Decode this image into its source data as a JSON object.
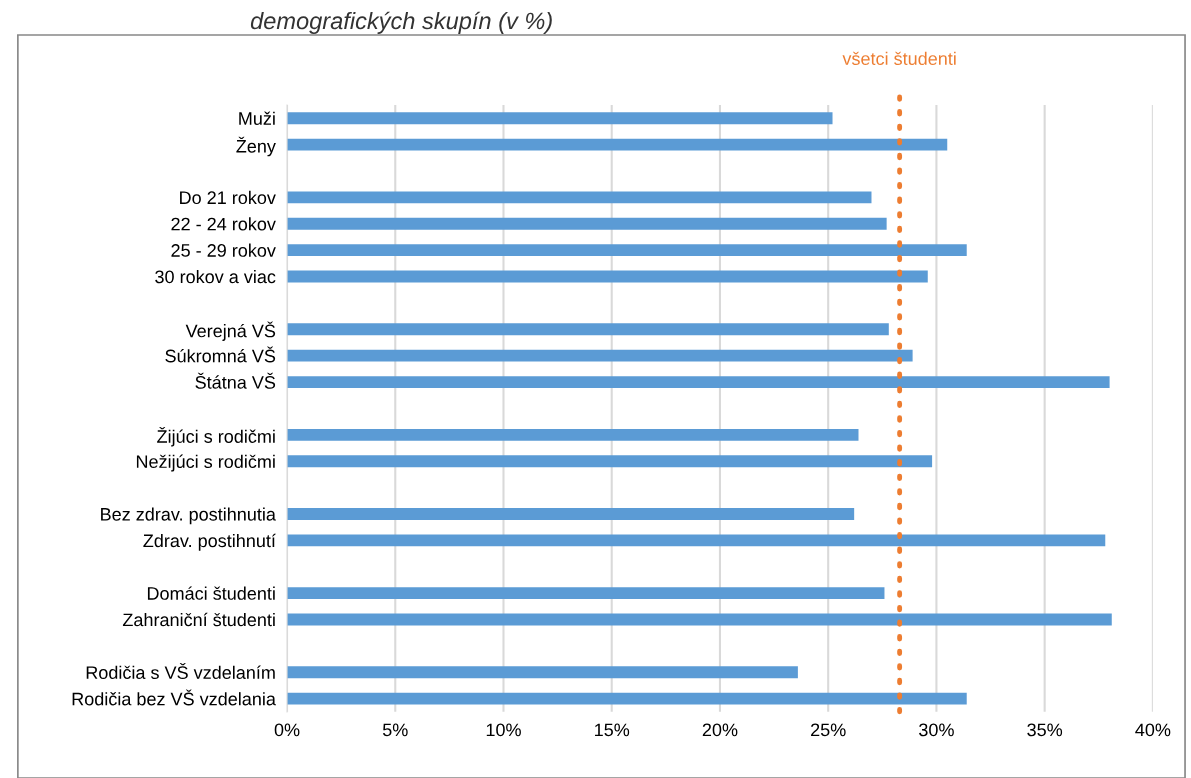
{
  "chart_data": {
    "type": "bar",
    "orientation": "horizontal",
    "title": "demografických skupín (v %)",
    "categories": [
      "Muži",
      "Ženy",
      null,
      "Do 21 rokov",
      "22 - 24 rokov",
      "25 - 29 rokov",
      "30 rokov a viac",
      null,
      "Verejná VŠ",
      "Súkromná VŠ",
      "Štátna VŠ",
      null,
      "Žijúci s rodičmi",
      "Nežijúci s rodičmi",
      null,
      "Bez zdrav. postihnutia",
      "Zdrav. postihnutí",
      null,
      "Domáci študenti",
      "Zahraniční študenti",
      null,
      "Rodičia s VŠ vzdelaním",
      "Rodičia bez VŠ vzdelania"
    ],
    "values": [
      25.2,
      30.5,
      null,
      27.0,
      27.7,
      31.4,
      29.6,
      null,
      27.8,
      28.9,
      38.0,
      null,
      26.4,
      29.8,
      null,
      26.2,
      37.8,
      null,
      27.6,
      38.1,
      null,
      23.6,
      31.4
    ],
    "color": "#5b9bd5",
    "xlim": [
      0,
      40
    ],
    "xticks": [
      {
        "value": 0,
        "label": "0%"
      },
      {
        "value": 5,
        "label": "5%"
      },
      {
        "value": 10,
        "label": "10%"
      },
      {
        "value": 15,
        "label": "15%"
      },
      {
        "value": 20,
        "label": "20%"
      },
      {
        "value": 25,
        "label": "25%"
      },
      {
        "value": 30,
        "label": "30%"
      },
      {
        "value": 35,
        "label": "35%"
      },
      {
        "value": 40,
        "label": "40%"
      }
    ],
    "grid": "x",
    "ref_lines": [
      {
        "axis": "x",
        "value": 28.3,
        "label": "všetci študenti",
        "color": "#ed7d31",
        "line_style": "dotted"
      }
    ]
  }
}
